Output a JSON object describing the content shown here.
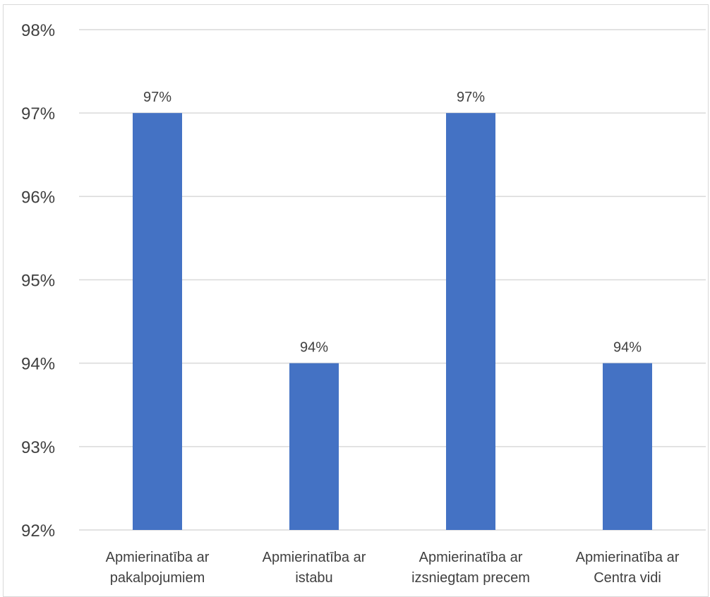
{
  "chart_data": {
    "type": "bar",
    "title": "",
    "xlabel": "",
    "ylabel": "",
    "categories": [
      [
        "Apmierinatība ar",
        "pakalpojumiem"
      ],
      [
        "Apmierinatība ar",
        "istabu"
      ],
      [
        "Apmierinatība ar",
        "izsniegtam precem"
      ],
      [
        "Apmierinatība ar",
        "Centra vidi"
      ]
    ],
    "values": [
      0.97,
      0.94,
      0.97,
      0.94
    ],
    "data_labels": [
      "97%",
      "94%",
      "97%",
      "94%"
    ],
    "ylim": [
      0.92,
      0.98
    ],
    "yticks": [
      0.92,
      0.93,
      0.94,
      0.95,
      0.96,
      0.97,
      0.98
    ],
    "ytick_labels": [
      "92%",
      "93%",
      "94%",
      "95%",
      "96%",
      "97%",
      "98%"
    ],
    "grid": true,
    "legend": "none",
    "bar_color": "#4472c4"
  }
}
